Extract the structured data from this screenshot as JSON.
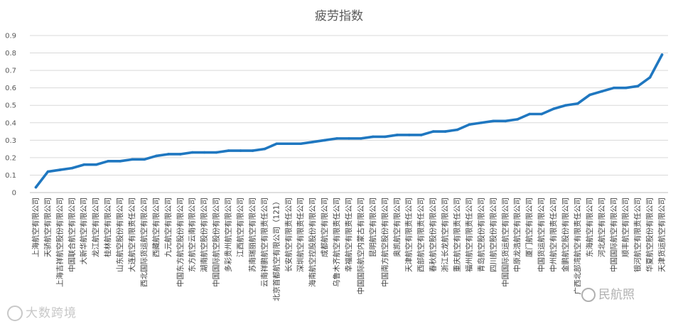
{
  "colors": {
    "series": "#1f77c0",
    "grid": "#d9d9d9",
    "text": "#595959"
  },
  "chart_data": {
    "type": "line",
    "title": "疲劳指数",
    "xlabel": "",
    "ylabel": "",
    "ylim": [
      0,
      0.9
    ],
    "yticks": [
      0,
      0.1,
      0.2,
      0.3,
      0.4,
      0.5,
      0.6,
      0.7,
      0.8,
      0.9
    ],
    "grid": true,
    "legend": "none",
    "categories": [
      "上海航空有限公司",
      "天骄航空有限公司",
      "上海吉祥航空股份有限公司",
      "中国联合航空有限公司",
      "大新华航空有限公司",
      "龙江航空有限公司",
      "桂林航空有限公司",
      "山东航空股份有限公司",
      "大连航空有限责任公司",
      "西北国际货运航空有限公司",
      "西藏航空有限公司",
      "九元航空有限公司",
      "中国东方航空股份有限公司",
      "东方航空云南有限公司",
      "湖南航空股份有限公司",
      "中国国际航空股份有限公司",
      "多彩贵州航空有限公司",
      "江西航空有限公司",
      "苏南瑞丽航空有限公司",
      "云南祥鹏航空有限责任公司",
      "北京首都航空有限公司（121）",
      "长安航空有限责任公司",
      "深圳航空有限责任公司",
      "海南航空控股股份有限公司",
      "成都航空有限公司",
      "乌鲁木齐航空有限责任公司",
      "幸福航空有限责任公司",
      "中国国际航空内蒙古有限公司",
      "昆明航空有限公司",
      "中国南方航空股份有限公司",
      "奥凯航空有限公司",
      "天津航空有限责任公司",
      "西部航空有限责任公司",
      "春秋航空股份有限公司",
      "浙江长龙航空有限公司",
      "重庆航空有限责任公司",
      "福州航空有限责任公司",
      "青岛航空股份有限公司",
      "四川航空股份有限公司",
      "中国国际货运航空有限公司",
      "中原龙浩航空有限公司",
      "厦门航空有限公司",
      "中国货运航空有限公司",
      "中州航空有限责任公司",
      "金鹏航空股份有限公司",
      "广西北部湾航空有限责任公司",
      "东海航空有限公司",
      "河北航空有限公司",
      "中国国际航空有限公司",
      "顺丰航空有限公司",
      "银河航空有限责任公司",
      "华夏航空股份有限公司",
      "天津货运航空有限公司"
    ],
    "series": [
      {
        "values": [
          0.03,
          0.12,
          0.13,
          0.14,
          0.16,
          0.16,
          0.18,
          0.18,
          0.19,
          0.19,
          0.21,
          0.22,
          0.22,
          0.23,
          0.23,
          0.23,
          0.24,
          0.24,
          0.24,
          0.25,
          0.28,
          0.28,
          0.28,
          0.29,
          0.3,
          0.31,
          0.31,
          0.31,
          0.32,
          0.32,
          0.33,
          0.33,
          0.33,
          0.35,
          0.35,
          0.36,
          0.39,
          0.4,
          0.41,
          0.41,
          0.42,
          0.45,
          0.45,
          0.48,
          0.5,
          0.51,
          0.56,
          0.58,
          0.6,
          0.6,
          0.61,
          0.66,
          0.79
        ]
      }
    ]
  },
  "watermarks": {
    "left": "大数跨境",
    "right": "民航照"
  }
}
